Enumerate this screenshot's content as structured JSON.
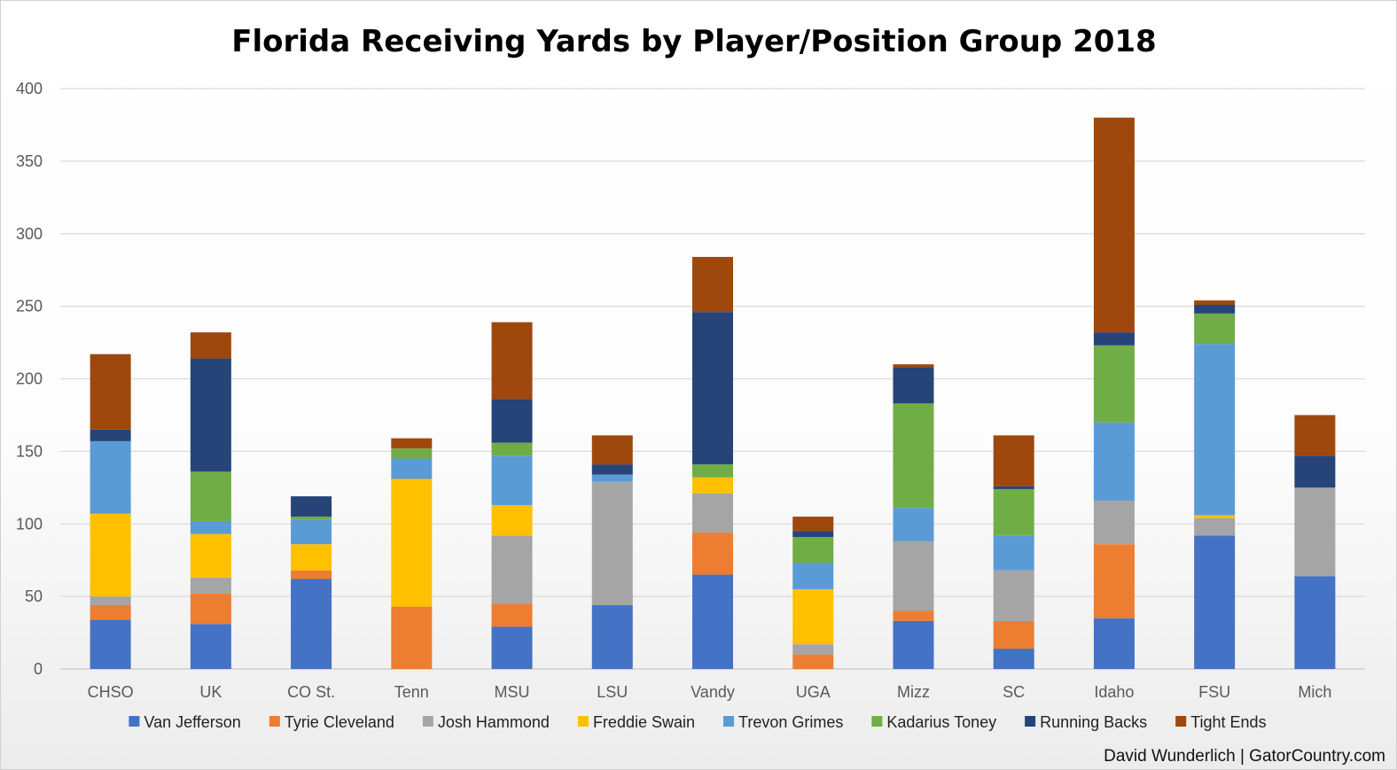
{
  "chart_data": {
    "type": "bar",
    "stacked": true,
    "title": "Florida Receiving Yards by Player/Position Group 2018",
    "xlabel": "",
    "ylabel": "",
    "ylim": [
      0,
      400
    ],
    "yticks": [
      0,
      50,
      100,
      150,
      200,
      250,
      300,
      350,
      400
    ],
    "grid": true,
    "legend_position": "bottom",
    "categories": [
      "CHSO",
      "UK",
      "CO St.",
      "Tenn",
      "MSU",
      "LSU",
      "Vandy",
      "UGA",
      "Mizz",
      "SC",
      "Idaho",
      "FSU",
      "Mich"
    ],
    "series": [
      {
        "name": "Van Jefferson",
        "color": "#4472C4",
        "values": [
          34,
          31,
          62,
          0,
          29,
          44,
          65,
          0,
          33,
          14,
          35,
          92,
          64
        ]
      },
      {
        "name": "Tyrie Cleveland",
        "color": "#ED7D31",
        "values": [
          10,
          21,
          6,
          43,
          16,
          0,
          29,
          10,
          7,
          19,
          51,
          0,
          0
        ]
      },
      {
        "name": "Josh Hammond",
        "color": "#A5A5A5",
        "values": [
          6,
          11,
          0,
          0,
          47,
          85,
          27,
          7,
          48,
          35,
          30,
          12,
          61
        ]
      },
      {
        "name": "Freddie Swain",
        "color": "#FFC000",
        "values": [
          57,
          30,
          18,
          88,
          21,
          0,
          11,
          38,
          0,
          0,
          0,
          2,
          0
        ]
      },
      {
        "name": "Trevon Grimes",
        "color": "#5B9BD5",
        "values": [
          50,
          9,
          17,
          14,
          34,
          5,
          0,
          18,
          23,
          24,
          54,
          118,
          0
        ]
      },
      {
        "name": "Kadarius Toney",
        "color": "#70AD47",
        "values": [
          0,
          34,
          2,
          7,
          9,
          0,
          9,
          18,
          72,
          32,
          53,
          21,
          0
        ]
      },
      {
        "name": "Running Backs",
        "color": "#264478",
        "values": [
          8,
          78,
          14,
          0,
          30,
          7,
          105,
          4,
          25,
          2,
          9,
          6,
          22
        ]
      },
      {
        "name": "Tight Ends",
        "color": "#9E480E",
        "values": [
          52,
          18,
          0,
          7,
          53,
          20,
          38,
          10,
          2,
          35,
          148,
          3,
          28
        ]
      }
    ]
  },
  "credit": "David Wunderlich | GatorCountry.com"
}
